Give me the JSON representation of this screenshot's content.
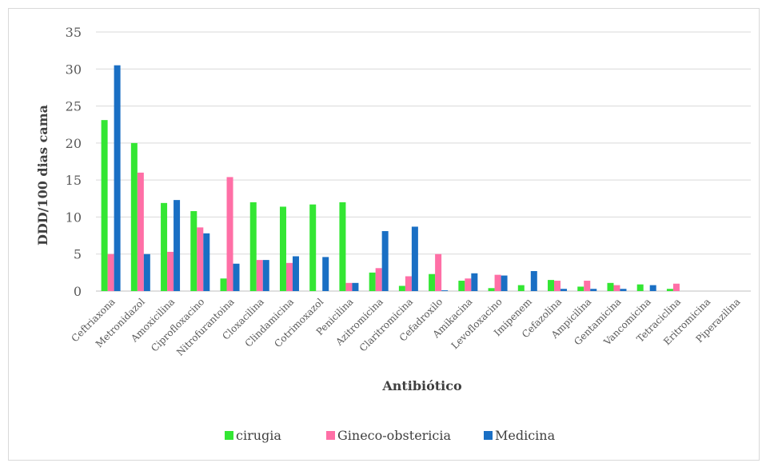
{
  "chart_data": {
    "type": "bar",
    "title": "",
    "xlabel": "Antibiótico",
    "ylabel": "DDD/100 dias cama",
    "ylim": [
      0,
      35
    ],
    "yticks": [
      0,
      5,
      10,
      15,
      20,
      25,
      30,
      35
    ],
    "grid": true,
    "legend_position": "bottom",
    "categories": [
      "Ceftriaxona",
      "Metronidazol",
      "Amoxicilina",
      "Ciprofloxacino",
      "Nitrofurantoina",
      "Cloxacilina",
      "Clindamicina",
      "Cotrimoxazol",
      "Penicilina",
      "Azitromicina",
      "Claritromicina",
      "Cefadroxilo",
      "Amikacina",
      "Levofloxacino",
      "Imipenem",
      "Cefazolina",
      "Ampicilina",
      "Gentamicina",
      "Vancomicina",
      "Tetraciclina",
      "Eritromicina",
      "Piperazilina"
    ],
    "series": [
      {
        "name": "cirugia",
        "color": "#33e633",
        "values": [
          23.1,
          20.0,
          11.9,
          10.8,
          1.7,
          12.0,
          11.4,
          11.7,
          12.0,
          2.5,
          0.7,
          2.3,
          1.4,
          0.4,
          0.8,
          1.5,
          0.6,
          1.1,
          0.9,
          0.3,
          0,
          0
        ]
      },
      {
        "name": "Gineco-obstericia",
        "color": "#ff6fa6",
        "values": [
          5.0,
          16.0,
          5.3,
          8.6,
          15.4,
          4.2,
          3.8,
          0,
          1.1,
          3.1,
          2.0,
          5.0,
          1.7,
          2.2,
          0,
          1.4,
          1.4,
          0.8,
          0,
          1.0,
          0,
          0
        ]
      },
      {
        "name": "Medicina",
        "color": "#1a6fc4",
        "values": [
          30.5,
          5.0,
          12.3,
          7.8,
          3.7,
          4.2,
          4.7,
          4.6,
          1.1,
          8.1,
          8.7,
          0.1,
          2.4,
          2.1,
          2.7,
          0.3,
          0.3,
          0.3,
          0.8,
          0,
          0,
          0
        ]
      }
    ]
  }
}
